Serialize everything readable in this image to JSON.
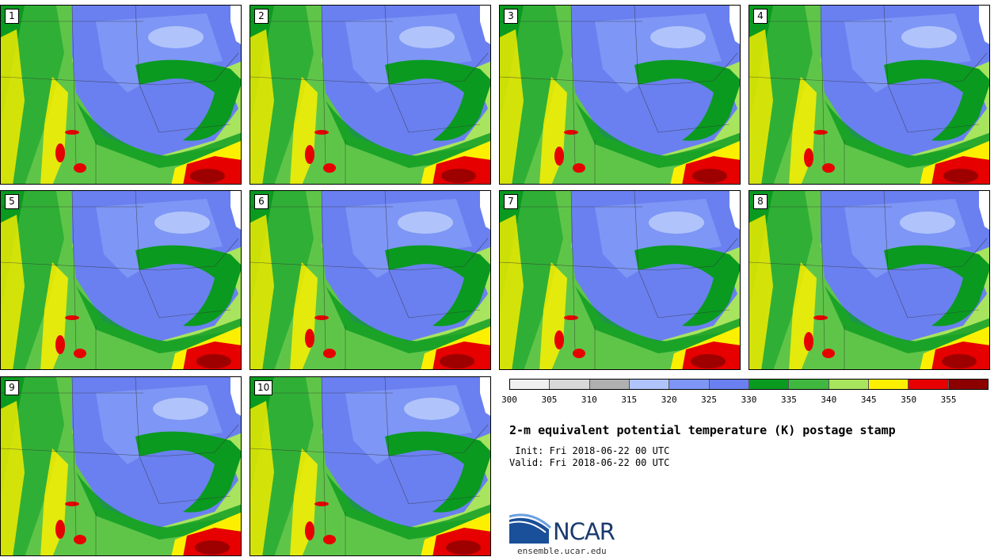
{
  "panels": [
    {
      "label": "1"
    },
    {
      "label": "2"
    },
    {
      "label": "3"
    },
    {
      "label": "4"
    },
    {
      "label": "5"
    },
    {
      "label": "6"
    },
    {
      "label": "7"
    },
    {
      "label": "8"
    },
    {
      "label": "9"
    },
    {
      "label": "10"
    }
  ],
  "colorbar": {
    "colors": [
      "#f0f0f0",
      "#d8d8d8",
      "#b0b0b0",
      "#b0c4fb",
      "#7e96f5",
      "#6a80f0",
      "#0a9a20",
      "#40b840",
      "#a8e45e",
      "#fcf000",
      "#e60000",
      "#8c0000"
    ],
    "ticks": [
      "300",
      "305",
      "310",
      "315",
      "320",
      "325",
      "330",
      "335",
      "340",
      "345",
      "350",
      "355"
    ]
  },
  "title": "2-m equivalent potential temperature (K) postage stamp",
  "init": " Init: Fri 2018-06-22 00 UTC",
  "valid": "Valid: Fri 2018-06-22 00 UTC",
  "logo": {
    "text": "NCAR",
    "url": "ensemble.ucar.edu",
    "icon": "ncar-swoosh-icon"
  }
}
